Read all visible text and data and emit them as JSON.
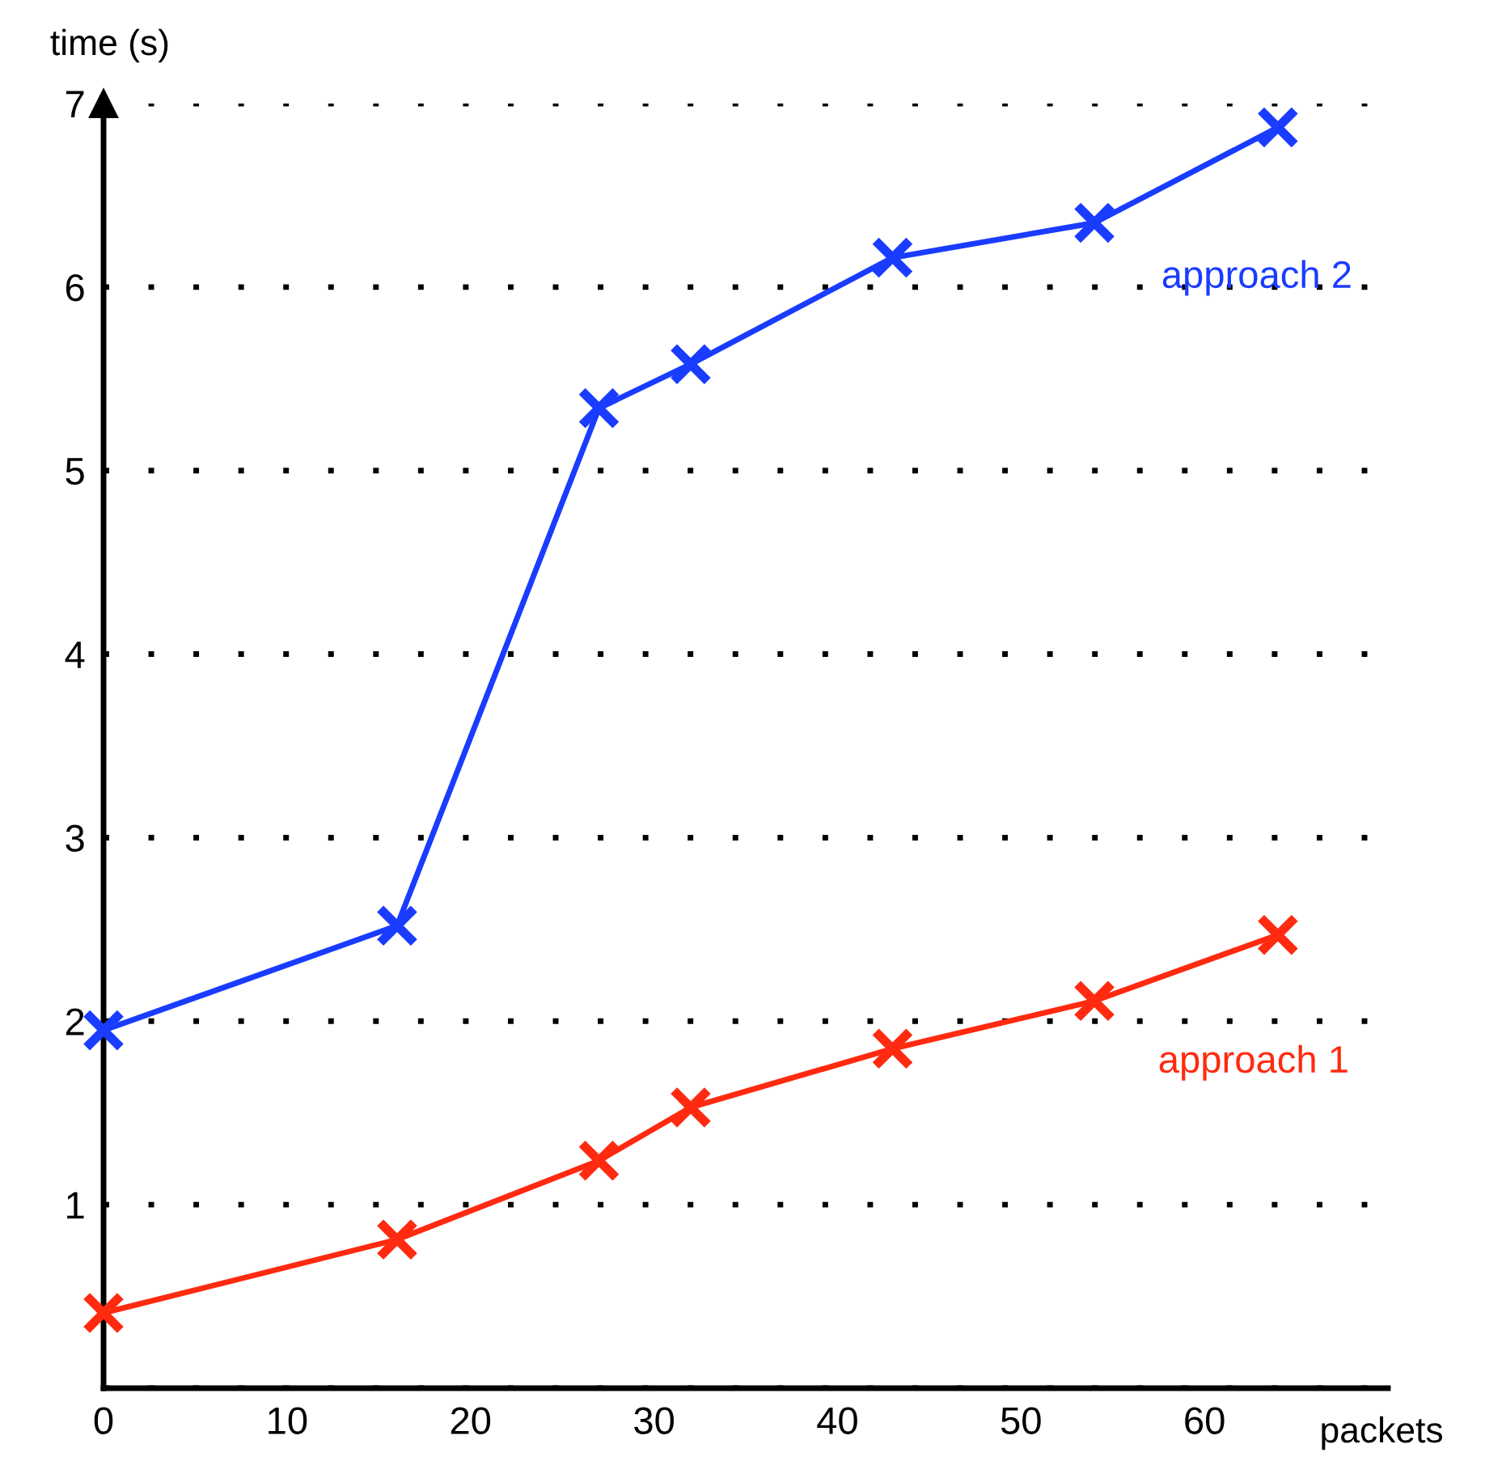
{
  "chart_data": {
    "type": "line",
    "xlabel": "packets",
    "ylabel": "time (s)",
    "x": [
      0,
      16,
      27,
      32,
      43,
      54,
      64
    ],
    "series": [
      {
        "name": "approach 2",
        "color": "#1a3cff",
        "values": [
          1.95,
          2.52,
          5.34,
          5.58,
          6.16,
          6.35,
          6.87
        ]
      },
      {
        "name": "approach 1",
        "color": "#ff2a10",
        "values": [
          0.41,
          0.81,
          1.24,
          1.53,
          1.85,
          2.11,
          2.47
        ]
      }
    ],
    "xlim": [
      0,
      70
    ],
    "xticks": [
      0,
      10,
      20,
      30,
      40,
      50,
      60
    ],
    "ylim": [
      0,
      7
    ],
    "yticks": [
      {
        "value": 0,
        "label": null
      },
      1,
      2,
      3,
      4,
      5,
      6,
      7
    ],
    "grid": "y",
    "marker": "cross",
    "line_style": "solid",
    "legend": false
  }
}
